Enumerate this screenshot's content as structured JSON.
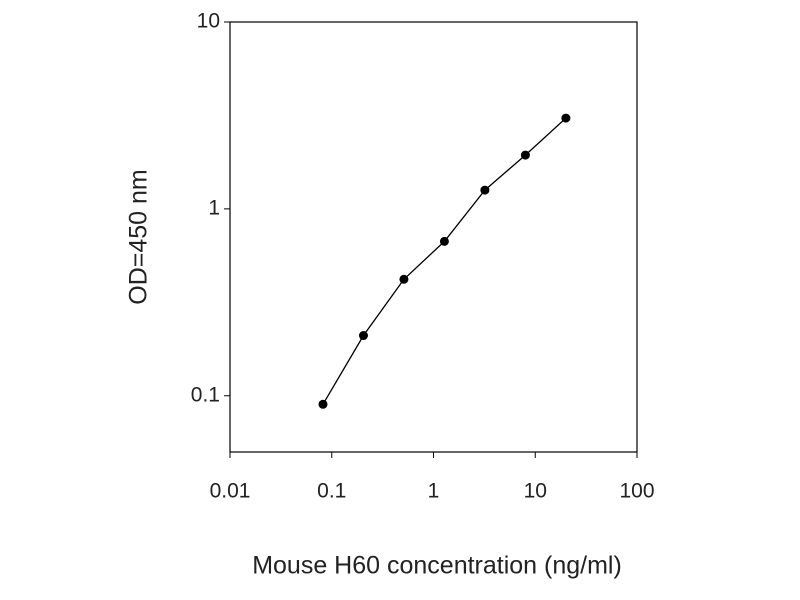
{
  "chart_data": {
    "type": "line",
    "x_label": "Mouse H60 concentration (ng/ml)",
    "y_label": "OD=450 nm",
    "x": [
      0.082,
      0.205,
      0.512,
      1.28,
      3.2,
      8,
      20
    ],
    "series": [
      {
        "color": "#000000",
        "values": [
          0.09,
          0.21,
          0.42,
          0.67,
          1.26,
          1.94,
          3.06
        ]
      }
    ],
    "xscale": "log",
    "yscale": "log",
    "xlim": [
      0.01,
      100
    ],
    "ylim": [
      0.05,
      10
    ],
    "xticks": [
      0.01,
      0.1,
      1,
      10,
      100
    ],
    "yticks": [
      0.1,
      1,
      10
    ],
    "grid": false
  }
}
